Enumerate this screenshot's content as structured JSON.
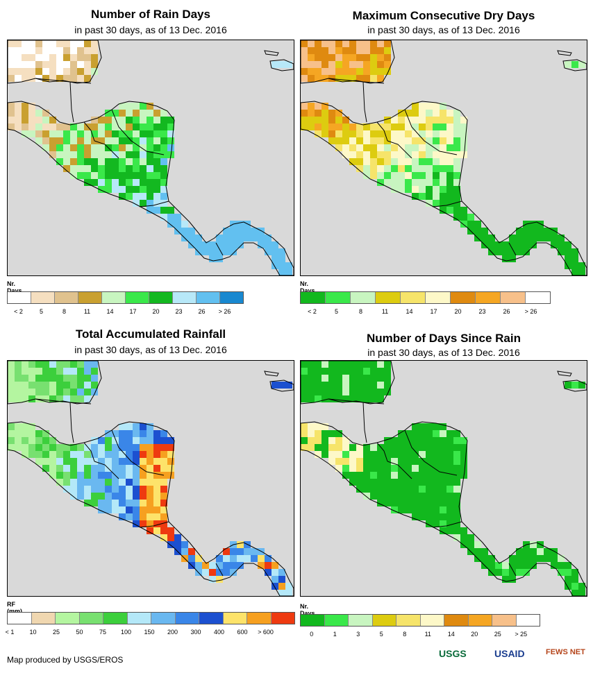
{
  "panels": [
    {
      "id": "rain-days",
      "title": "Number of Rain Days",
      "subtitle": "in past 30 days, as of 13 Dec. 2016",
      "legend_title": "Nr. Days",
      "legend_colors": [
        "#ffffff",
        "#f5dfc0",
        "#e0c28e",
        "#c9a030",
        "#c8f5c0",
        "#3ae84a",
        "#13b820",
        "#b7e8f8",
        "#62c0f0",
        "#1888d0"
      ],
      "legend_labels": [
        "< 2",
        "5",
        "8",
        "11",
        "14",
        "17",
        "20",
        "23",
        "26",
        "> 26"
      ],
      "map_palette": [
        "#ffffff",
        "#f5dfc0",
        "#e0c28e",
        "#c9a030",
        "#c8f5c0",
        "#3ae84a",
        "#13b820",
        "#b7e8f8",
        "#62c0f0"
      ]
    },
    {
      "id": "dry-days",
      "title": "Maximum Consecutive Dry Days",
      "subtitle": "in past 30 days, as of 13 Dec. 2016",
      "legend_title": "Nr. Days",
      "legend_colors": [
        "#12b81e",
        "#3ae84a",
        "#c8f5c0",
        "#ddcc10",
        "#f6e46a",
        "#fdf8c8",
        "#df8a10",
        "#f5a623",
        "#f7c08a",
        "#ffffff"
      ],
      "legend_labels": [
        "< 2",
        "5",
        "8",
        "11",
        "14",
        "17",
        "20",
        "23",
        "26",
        "> 26"
      ],
      "map_palette": [
        "#12b81e",
        "#3ae84a",
        "#c8f5c0",
        "#ddcc10",
        "#f6e46a",
        "#fdf8c8",
        "#df8a10",
        "#f5a623",
        "#f7c08a"
      ]
    },
    {
      "id": "rainfall",
      "title": "Total Accumulated Rainfall",
      "subtitle": "in past 30 days, as of 13 Dec. 2016",
      "legend_title": "RF (mm)",
      "legend_colors": [
        "#ffffff",
        "#f0d7b0",
        "#b4f5a0",
        "#78e070",
        "#3ccf3c",
        "#b4e8f8",
        "#6ab8f0",
        "#3a86e8",
        "#1c50d0",
        "#fde36a",
        "#f6a020",
        "#ee3a10"
      ],
      "legend_labels": [
        "< 1",
        "10",
        "25",
        "50",
        "75",
        "100",
        "150",
        "200",
        "300",
        "400",
        "600",
        "> 600"
      ],
      "map_palette": [
        "#b4f5a0",
        "#78e070",
        "#3ccf3c",
        "#b4e8f8",
        "#6ab8f0",
        "#3a86e8",
        "#1c50d0",
        "#fde36a",
        "#f6a020",
        "#ee3a10"
      ]
    },
    {
      "id": "days-since-rain",
      "title": "Number of Days Since Rain",
      "subtitle": "in past 30 days, as of 13 Dec. 2016",
      "legend_title": "Nr. Days",
      "legend_colors": [
        "#12b81e",
        "#3ae84a",
        "#c8f5c0",
        "#ddcc10",
        "#f6e46a",
        "#fdf8c8",
        "#df8a10",
        "#f5a623",
        "#f7c08a",
        "#ffffff"
      ],
      "legend_labels": [
        "0",
        "1",
        "3",
        "5",
        "8",
        "11",
        "14",
        "20",
        "25",
        "> 25"
      ],
      "map_palette": [
        "#12b81e",
        "#3ae84a",
        "#c8f5c0",
        "#f6e46a",
        "#fdf8c8"
      ]
    }
  ],
  "footer": {
    "credit": "Map produced by USGS/EROS",
    "logos": [
      "USGS",
      "USAID",
      "FEWS NET"
    ]
  },
  "colors": {
    "ocean": "#d9d9d9",
    "border": "#000000"
  }
}
